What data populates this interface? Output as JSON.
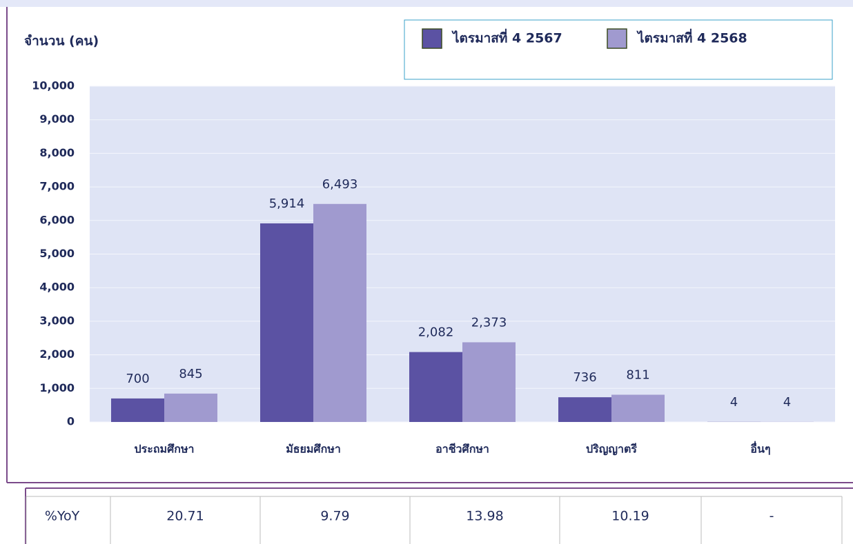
{
  "chart_data": {
    "type": "bar",
    "y_axis_label": "จำนวน (คน)",
    "categories": [
      "ประถมศึกษา",
      "มัธยมศึกษา",
      "อาชีวศึกษา",
      "ปริญญาตรี",
      "อื่นๆ"
    ],
    "series": [
      {
        "name": "ไตรมาสที่ 4 2567",
        "color": "#5b52a3",
        "values": [
          700,
          5914,
          2082,
          736,
          4
        ],
        "value_labels": [
          "700",
          "5,914",
          "2,082",
          "736",
          "4"
        ]
      },
      {
        "name": "ไตรมาสที่ 4 2568",
        "color": "#a09acf",
        "values": [
          845,
          6493,
          2373,
          811,
          4
        ],
        "value_labels": [
          "845",
          "6,493",
          "2,373",
          "811",
          "4"
        ]
      }
    ],
    "ylim": [
      0,
      10000
    ],
    "yticks": [
      0,
      {
        "value": 1000,
        "label": "1,000"
      },
      {
        "value": 2000,
        "label": "2,000"
      },
      {
        "value": 3000,
        "label": "3,000"
      },
      {
        "value": 4000,
        "label": "4,000"
      },
      {
        "value": 5000,
        "label": "5,000"
      },
      {
        "value": 6000,
        "label": "6,000"
      },
      {
        "value": 7000,
        "label": "7,000"
      },
      {
        "value": 8000,
        "label": "8,000"
      },
      {
        "value": 9000,
        "label": "9,000"
      },
      {
        "value": 10000,
        "label": "10,000"
      }
    ],
    "grid": true
  },
  "table": {
    "header": "%YoY",
    "cells": [
      "20.71",
      "9.79",
      "13.98",
      "10.19",
      "-"
    ]
  }
}
